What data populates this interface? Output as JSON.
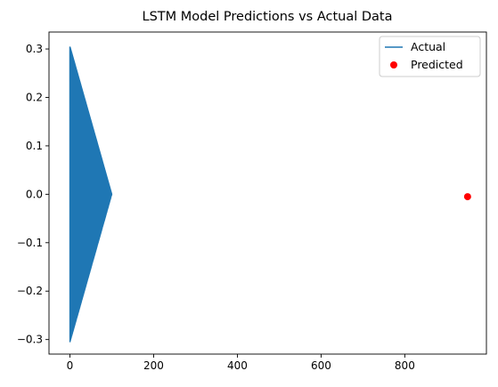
{
  "chart_data": {
    "type": "line",
    "title": "LSTM Model Predictions vs Actual Data",
    "xlabel": "",
    "ylabel": "",
    "xlim": [
      -50,
      995
    ],
    "ylim": [
      -0.33,
      0.335
    ],
    "xticks": [
      0,
      200,
      400,
      600,
      800
    ],
    "yticks": [
      -0.3,
      -0.2,
      -0.1,
      0.0,
      0.1,
      0.2,
      0.3
    ],
    "ytick_labels": [
      "−0.3",
      "−0.2",
      "−0.1",
      "0.0",
      "0.1",
      "0.2",
      "0.3"
    ],
    "grid": false,
    "legend_position": "top-right",
    "series": [
      {
        "name": "Actual",
        "kind": "line",
        "color": "#1f77b4",
        "description_of_pattern": "oscillating signal whose amplitude decays linearly from ±0.305 at x=0 to 0 at x=100",
        "amplitude_start": 0.305,
        "x_start": 0,
        "x_end": 100
      },
      {
        "name": "Predicted",
        "kind": "scatter",
        "color": "#ff0000",
        "points": [
          [
            950,
            -0.005
          ]
        ]
      }
    ]
  }
}
